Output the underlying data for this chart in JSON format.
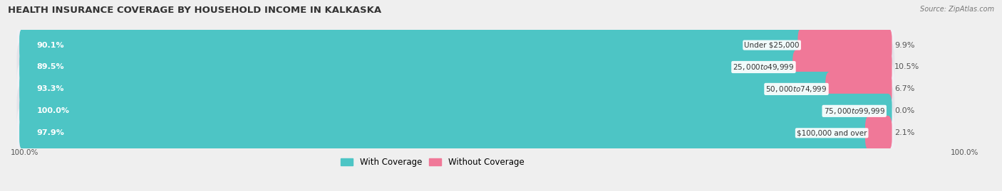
{
  "title": "HEALTH INSURANCE COVERAGE BY HOUSEHOLD INCOME IN KALKASKA",
  "source": "Source: ZipAtlas.com",
  "categories": [
    "Under $25,000",
    "$25,000 to $49,999",
    "$50,000 to $74,999",
    "$75,000 to $99,999",
    "$100,000 and over"
  ],
  "with_coverage": [
    90.1,
    89.5,
    93.3,
    100.0,
    97.9
  ],
  "without_coverage": [
    9.9,
    10.5,
    6.7,
    0.0,
    2.1
  ],
  "color_coverage": "#4dc5c5",
  "color_without": "#f07898",
  "row_bg_even": "#f0f0f4",
  "row_bg_odd": "#e4e4ea",
  "title_fontsize": 9.5,
  "label_fontsize": 8,
  "legend_fontsize": 8.5,
  "bar_total": 100.0,
  "axis_label": "100.0%"
}
